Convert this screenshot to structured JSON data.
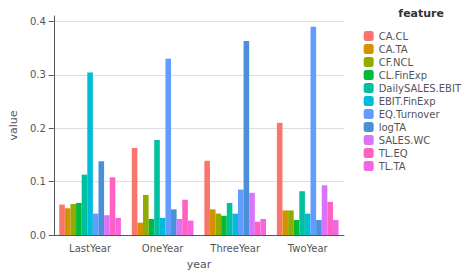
{
  "chart_data": {
    "type": "bar",
    "x_label": "year",
    "y_label": "value",
    "legend_title": "feature",
    "legend": "right",
    "grid": true,
    "categories": [
      "LastYear",
      "OneYear",
      "ThreeYear",
      "TwoYear"
    ],
    "series": [
      {
        "name": "CA.CL",
        "color": "#F8766D",
        "values": [
          0.057,
          0.163,
          0.139,
          0.21
        ]
      },
      {
        "name": "CA.TA",
        "color": "#D39200",
        "values": [
          0.05,
          0.023,
          0.048,
          0.046
        ]
      },
      {
        "name": "CF.NCL",
        "color": "#93AA00",
        "values": [
          0.058,
          0.075,
          0.04,
          0.046
        ]
      },
      {
        "name": "CL.FinExp",
        "color": "#00BA38",
        "values": [
          0.06,
          0.03,
          0.036,
          0.028
        ]
      },
      {
        "name": "DailySALES.EBIT",
        "color": "#00C19F",
        "values": [
          0.113,
          0.178,
          0.06,
          0.082
        ]
      },
      {
        "name": "EBIT.FinExp",
        "color": "#00BCD8",
        "values": [
          0.304,
          0.032,
          0.04,
          0.04
        ]
      },
      {
        "name": "EQ.Turnover",
        "color": "#619CFF",
        "values": [
          0.04,
          0.33,
          0.085,
          0.39
        ]
      },
      {
        "name": "logTA",
        "color": "#4A90D9",
        "values": [
          0.138,
          0.048,
          0.363,
          0.028
        ]
      },
      {
        "name": "SALES.WC",
        "color": "#DB72FB",
        "values": [
          0.037,
          0.03,
          0.079,
          0.093
        ]
      },
      {
        "name": "TL.EQ",
        "color": "#FF61C3",
        "values": [
          0.108,
          0.066,
          0.025,
          0.062
        ]
      },
      {
        "name": "TL.TA",
        "color": "#F564E3",
        "values": [
          0.032,
          0.027,
          0.03,
          0.028
        ]
      }
    ],
    "ylim": [
      0.0,
      0.41
    ],
    "yticks": [
      {
        "value": 0.0,
        "label": "0.0"
      },
      0.1,
      0.2,
      0.3,
      0.4
    ]
  }
}
